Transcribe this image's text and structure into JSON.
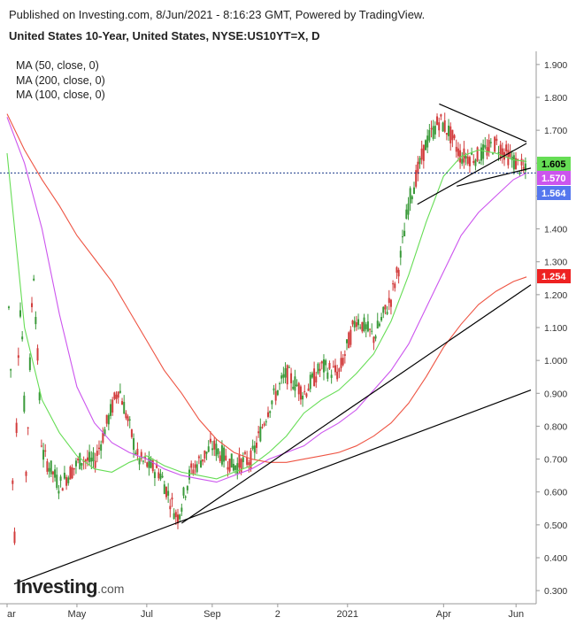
{
  "header": {
    "published": "Published on Investing.com, 8/Jun/2021 - 8:16:23 GMT, Powered by TradingView.",
    "title": "United States 10-Year, United States, NYSE:US10YT=X, D"
  },
  "logo": {
    "main": "Investing",
    "suffix": ".com"
  },
  "colors": {
    "candle_up": "#3a9a3a",
    "candle_down": "#d23c3c",
    "ma50": "#66dd55",
    "ma100": "#cc55ee",
    "ma200": "#ee5544",
    "trendline": "#000000",
    "last_price_line": "#1a3a8a"
  },
  "chart_data": {
    "type": "line",
    "legend": [
      "MA (50, close, 0)",
      "MA (200, close, 0)",
      "MA (100, close, 0)"
    ],
    "y_ticks": [
      "1.900",
      "1.800",
      "1.700",
      "1.600",
      "1.500",
      "1.400",
      "1.300",
      "1.200",
      "1.100",
      "1.000",
      "0.900",
      "0.800",
      "0.700",
      "0.600",
      "0.500",
      "0.400",
      "0.300"
    ],
    "y_tick_values": [
      1.9,
      1.8,
      1.7,
      1.6,
      1.5,
      1.4,
      1.3,
      1.2,
      1.1,
      1.0,
      0.9,
      0.8,
      0.7,
      0.6,
      0.5,
      0.4,
      0.3
    ],
    "ylim": [
      0.26,
      1.94
    ],
    "x_ticks": [
      "ar",
      "May",
      "Jul",
      "Sep",
      "2",
      "2021",
      "Apr",
      "Jun"
    ],
    "x_tick_days": [
      0,
      80,
      160,
      235,
      310,
      390,
      500,
      583
    ],
    "xlim": [
      0,
      600
    ],
    "price_badges": [
      {
        "label": "1.605",
        "value": 1.605,
        "bg": "#66dd55",
        "fg": "#000000"
      },
      {
        "label": "1.570",
        "value": 1.57,
        "bg": "#cc55ee",
        "fg": "#ffffff"
      },
      {
        "label": "1.564",
        "value": 1.564,
        "bg": "#5577ee",
        "fg": "#ffffff"
      },
      {
        "label": "1.254",
        "value": 1.254,
        "bg": "#ee2222",
        "fg": "#ffffff"
      }
    ],
    "last_price": 1.57,
    "series": [
      {
        "name": "MA (50, close, 0)",
        "color_key": "ma50",
        "x": [
          0,
          20,
          40,
          60,
          80,
          100,
          120,
          140,
          160,
          180,
          200,
          220,
          240,
          260,
          280,
          300,
          320,
          340,
          360,
          380,
          400,
          420,
          440,
          460,
          480,
          500,
          520,
          540,
          560,
          580,
          595
        ],
        "y": [
          1.63,
          1.1,
          0.88,
          0.78,
          0.71,
          0.67,
          0.66,
          0.69,
          0.71,
          0.68,
          0.66,
          0.65,
          0.64,
          0.66,
          0.68,
          0.72,
          0.77,
          0.84,
          0.88,
          0.91,
          0.96,
          1.02,
          1.12,
          1.26,
          1.42,
          1.56,
          1.62,
          1.64,
          1.63,
          1.61,
          1.605
        ]
      },
      {
        "name": "MA (100, close, 0)",
        "color_key": "ma100",
        "x": [
          0,
          20,
          40,
          60,
          80,
          100,
          120,
          140,
          160,
          180,
          200,
          220,
          240,
          260,
          280,
          300,
          320,
          340,
          360,
          380,
          400,
          420,
          440,
          460,
          480,
          500,
          520,
          540,
          560,
          580,
          595
        ],
        "y": [
          1.74,
          1.6,
          1.4,
          1.14,
          0.92,
          0.81,
          0.75,
          0.72,
          0.7,
          0.67,
          0.65,
          0.64,
          0.63,
          0.65,
          0.67,
          0.7,
          0.72,
          0.74,
          0.78,
          0.81,
          0.85,
          0.91,
          0.97,
          1.05,
          1.16,
          1.27,
          1.38,
          1.45,
          1.5,
          1.55,
          1.57
        ]
      },
      {
        "name": "MA (200, close, 0)",
        "color_key": "ma200",
        "x": [
          0,
          20,
          40,
          60,
          80,
          100,
          120,
          140,
          160,
          180,
          200,
          220,
          240,
          260,
          280,
          300,
          320,
          340,
          360,
          380,
          400,
          420,
          440,
          460,
          480,
          500,
          520,
          540,
          560,
          580,
          595
        ],
        "y": [
          1.75,
          1.64,
          1.55,
          1.47,
          1.38,
          1.31,
          1.24,
          1.15,
          1.06,
          0.97,
          0.9,
          0.82,
          0.76,
          0.72,
          0.7,
          0.69,
          0.69,
          0.7,
          0.71,
          0.72,
          0.74,
          0.77,
          0.81,
          0.87,
          0.95,
          1.04,
          1.11,
          1.17,
          1.21,
          1.24,
          1.254
        ]
      }
    ],
    "trendlines": [
      {
        "x": [
          8,
          600
        ],
        "y": [
          0.32,
          0.91
        ]
      },
      {
        "x": [
          200,
          600
        ],
        "y": [
          0.505,
          1.23
        ]
      },
      {
        "x": [
          470,
          595
        ],
        "y": [
          1.475,
          1.66
        ]
      },
      {
        "x": [
          495,
          595
        ],
        "y": [
          1.78,
          1.665
        ]
      },
      {
        "x": [
          515,
          600
        ],
        "y": [
          1.53,
          1.585
        ]
      }
    ]
  }
}
